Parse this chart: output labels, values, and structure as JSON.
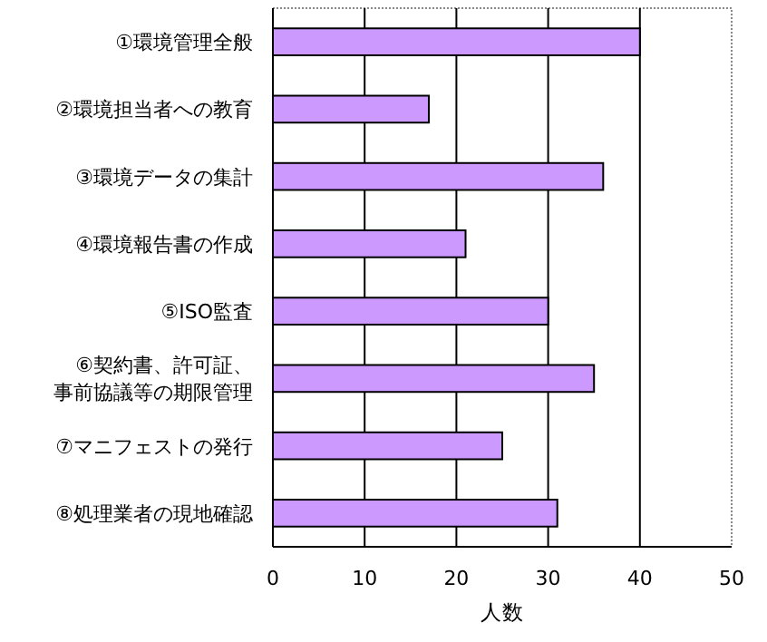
{
  "chart_data": {
    "type": "bar",
    "orientation": "horizontal",
    "xlabel": "人数",
    "categories": [
      "①環境管理全般",
      "②環境担当者への教育",
      "③環境データの集計",
      "④環境報告書の作成",
      "⑤ISO監査",
      "⑥契約書、許可証、事前協議等の期限管理",
      "⑦マニフェストの発行",
      "⑧処理業者の現地確認"
    ],
    "values": [
      40,
      17,
      36,
      21,
      30,
      35,
      25,
      31
    ],
    "color": "#cc99ff",
    "xlim": [
      0,
      50
    ],
    "xticks": [
      0,
      10,
      20,
      30,
      40,
      50
    ],
    "grid": "x"
  }
}
